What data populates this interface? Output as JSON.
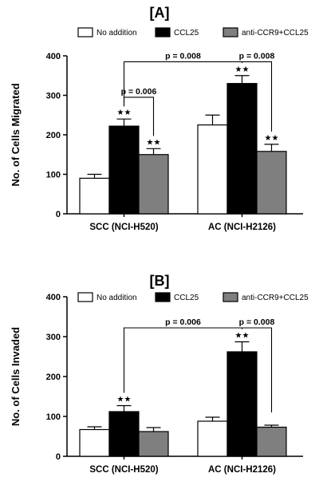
{
  "colors": {
    "no_addition": "#ffffff",
    "ccl25": "#000000",
    "anti": "#7f7f7f",
    "axis": "#000000"
  },
  "chart_data": [
    {
      "type": "bar",
      "panel_label": "[A]",
      "ylabel": "No. of Cells Migrated",
      "ylim": [
        0,
        400
      ],
      "yticks": [
        0,
        100,
        200,
        300,
        400
      ],
      "yticklabels": [
        "0",
        "100",
        "200",
        "300",
        "400"
      ],
      "categories": [
        "SCC (NCI-H520)",
        "AC (NCI-H2126)"
      ],
      "legend": [
        "No addition",
        "CCL25",
        "anti-CCR9+CCL25"
      ],
      "legend_position": "top",
      "series": [
        {
          "name": "No addition",
          "values": [
            90,
            225
          ],
          "errors": [
            10,
            25
          ],
          "stars": [
            "",
            ""
          ]
        },
        {
          "name": "CCL25",
          "values": [
            222,
            330
          ],
          "errors": [
            18,
            20
          ],
          "stars": [
            "★★",
            "★★"
          ]
        },
        {
          "name": "anti-CCR9+CCL25",
          "values": [
            150,
            158
          ],
          "errors": [
            15,
            18
          ],
          "stars": [
            "★★",
            "★★"
          ]
        }
      ],
      "brackets": [
        {
          "text": "p = 0.006",
          "from": [
            0,
            1
          ],
          "to": [
            0,
            2
          ],
          "level": 295
        },
        {
          "text": "p = 0.008",
          "from": [
            0,
            1
          ],
          "to": [
            1,
            1
          ],
          "level": 385
        },
        {
          "text": "p = 0.008",
          "from": [
            1,
            1
          ],
          "to": [
            1,
            2
          ],
          "level": 385
        }
      ]
    },
    {
      "type": "bar",
      "panel_label": "[B]",
      "ylabel": "No. of Cells Invaded",
      "ylim": [
        0,
        400
      ],
      "yticks": [
        0,
        100,
        200,
        300,
        400
      ],
      "yticklabels": [
        "0",
        "100",
        "200",
        "300",
        "400"
      ],
      "categories": [
        "SCC (NCI-H520)",
        "AC (NCI-H2126)"
      ],
      "legend": [
        "No addition",
        "CCL25",
        "anti-CCR9+CCL25"
      ],
      "legend_position": "top",
      "series": [
        {
          "name": "No addition",
          "values": [
            67,
            88
          ],
          "errors": [
            7,
            10
          ],
          "stars": [
            "",
            ""
          ]
        },
        {
          "name": "CCL25",
          "values": [
            112,
            262
          ],
          "errors": [
            15,
            25
          ],
          "stars": [
            "★★",
            "★★"
          ]
        },
        {
          "name": "anti-CCR9+CCL25",
          "values": [
            62,
            73
          ],
          "errors": [
            10,
            5
          ],
          "stars": [
            "",
            ""
          ]
        }
      ],
      "brackets": [
        {
          "text": "p = 0.006",
          "from": [
            0,
            1
          ],
          "to": [
            1,
            1
          ],
          "level": 322
        },
        {
          "text": "p = 0.008",
          "from": [
            1,
            1
          ],
          "to": [
            1,
            2
          ],
          "level": 322
        }
      ]
    }
  ]
}
